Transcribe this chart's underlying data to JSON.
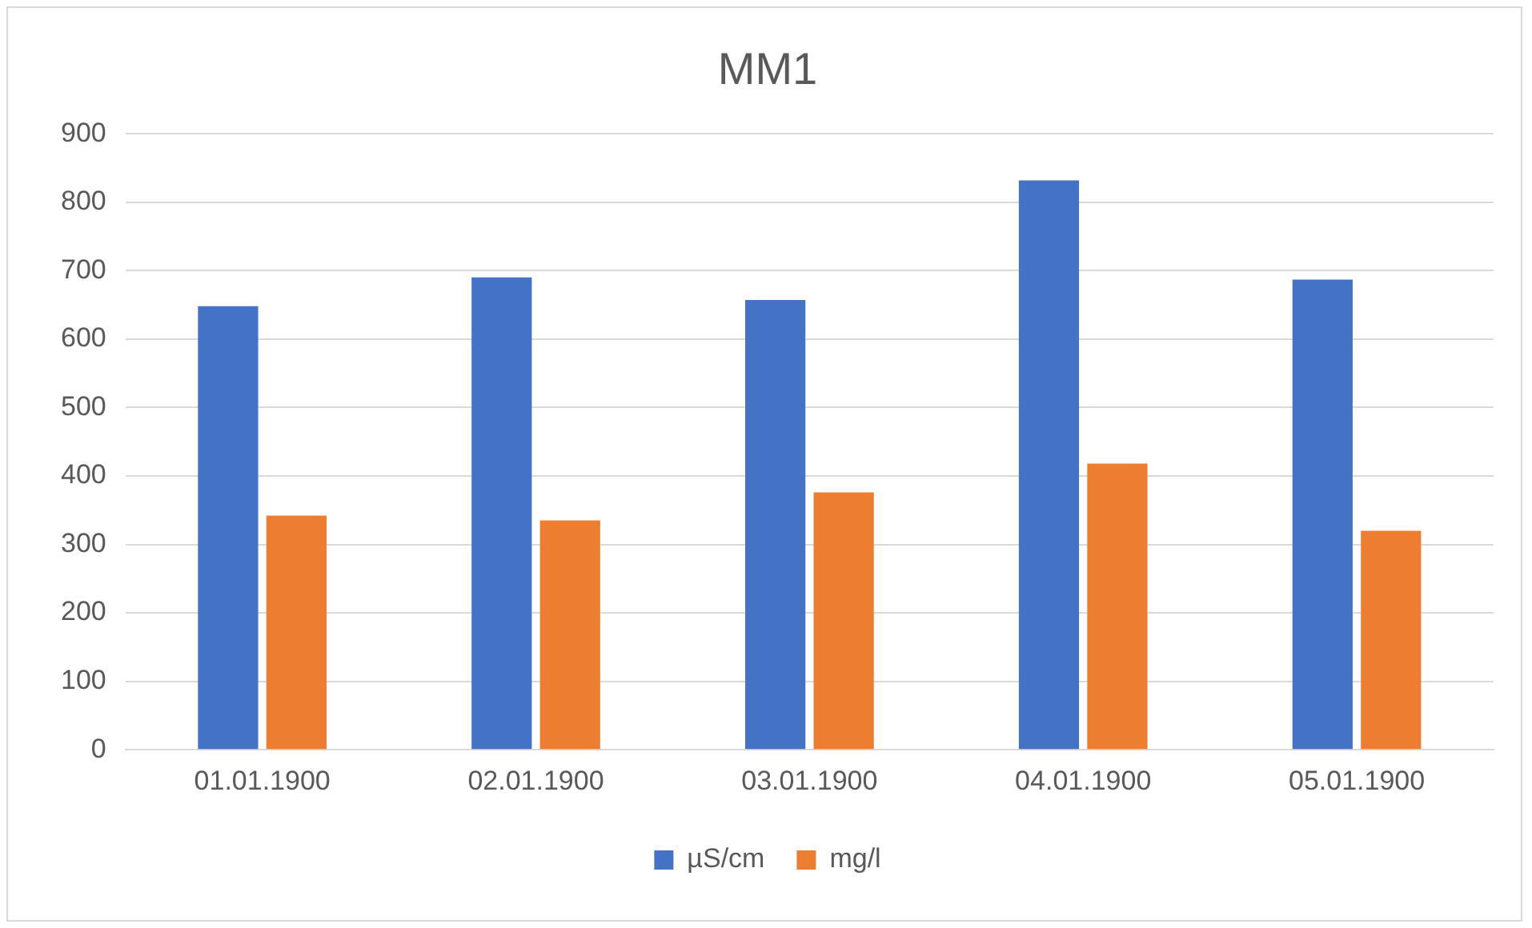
{
  "chart_data": {
    "type": "bar",
    "title": "MM1",
    "categories": [
      "01.01.1900",
      "02.01.1900",
      "03.01.1900",
      "04.01.1900",
      "05.01.1900"
    ],
    "series": [
      {
        "name": "µS/cm",
        "color": "#4472c4",
        "values": [
          648,
          690,
          657,
          832,
          687
        ]
      },
      {
        "name": "mg/l",
        "color": "#ed7d31",
        "values": [
          342,
          335,
          376,
          418,
          320
        ]
      }
    ],
    "ylim": [
      0,
      900
    ],
    "yticks": [
      0,
      100,
      200,
      300,
      400,
      500,
      600,
      700,
      800,
      900
    ],
    "grid": "y",
    "legend": "bottom"
  }
}
